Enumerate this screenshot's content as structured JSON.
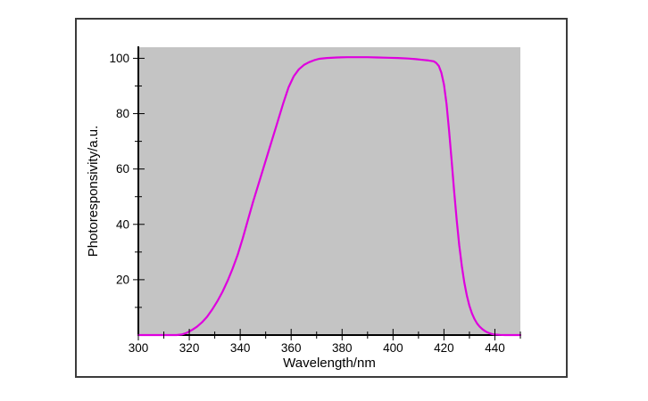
{
  "figure": {
    "page_bg": "#ffffff",
    "panel_bg": "#ffffff",
    "panel_border_color": "#3b3b3b",
    "plot_bg": "#c4c4c4",
    "axis_color": "#000000",
    "text_color": "#000000"
  },
  "chart_data": {
    "type": "line",
    "title": "",
    "xlabel": "Wavelength/nm",
    "ylabel": "Photoresponsivity/a.u.",
    "xlim": [
      300,
      450
    ],
    "ylim": [
      0,
      104
    ],
    "grid": false,
    "legend": "none",
    "x_major_ticks": [
      300,
      320,
      340,
      360,
      380,
      400,
      420,
      440
    ],
    "x_minor_ticks": [
      310,
      330,
      350,
      370,
      390,
      410,
      430,
      450
    ],
    "y_major_ticks": [
      20,
      40,
      60,
      80,
      100
    ],
    "y_minor_ticks": [
      10,
      30,
      50,
      70,
      90
    ],
    "tick_style": "in-and-out",
    "series": [
      {
        "name": "photoresponsivity",
        "color": "#de00de",
        "line_width": 2.2,
        "points": [
          [
            300,
            0
          ],
          [
            304,
            0
          ],
          [
            308,
            0
          ],
          [
            312,
            0
          ],
          [
            315,
            0
          ],
          [
            317,
            0.2
          ],
          [
            319,
            0.8
          ],
          [
            321,
            1.8
          ],
          [
            323,
            3
          ],
          [
            325,
            4.6
          ],
          [
            327,
            6.6
          ],
          [
            329,
            9.2
          ],
          [
            331,
            12.2
          ],
          [
            333,
            15.6
          ],
          [
            335,
            19.5
          ],
          [
            337,
            24
          ],
          [
            339,
            29
          ],
          [
            341,
            35
          ],
          [
            343,
            41.5
          ],
          [
            345,
            48
          ],
          [
            347,
            54
          ],
          [
            349,
            60
          ],
          [
            351,
            66
          ],
          [
            353,
            72
          ],
          [
            355,
            78
          ],
          [
            357,
            84
          ],
          [
            359,
            89.5
          ],
          [
            361,
            93.5
          ],
          [
            363,
            96
          ],
          [
            365,
            97.6
          ],
          [
            367,
            98.6
          ],
          [
            369,
            99.3
          ],
          [
            371,
            99.8
          ],
          [
            374,
            100.1
          ],
          [
            378,
            100.3
          ],
          [
            382,
            100.4
          ],
          [
            386,
            100.4
          ],
          [
            390,
            100.4
          ],
          [
            394,
            100.3
          ],
          [
            398,
            100.2
          ],
          [
            402,
            100.1
          ],
          [
            406,
            99.9
          ],
          [
            409,
            99.7
          ],
          [
            412,
            99.4
          ],
          [
            414,
            99.2
          ],
          [
            416,
            98.9
          ],
          [
            417,
            98.3
          ],
          [
            418,
            97.2
          ],
          [
            419,
            94.8
          ],
          [
            420,
            90.5
          ],
          [
            421,
            83.5
          ],
          [
            422,
            74
          ],
          [
            423,
            63
          ],
          [
            424,
            52
          ],
          [
            425,
            41.5
          ],
          [
            426,
            32.5
          ],
          [
            427,
            25
          ],
          [
            428,
            19
          ],
          [
            429,
            14.2
          ],
          [
            430,
            10.6
          ],
          [
            431,
            7.8
          ],
          [
            432,
            5.8
          ],
          [
            433,
            4.2
          ],
          [
            434,
            3.1
          ],
          [
            435,
            2.2
          ],
          [
            436,
            1.5
          ],
          [
            437,
            1
          ],
          [
            438,
            0.6
          ],
          [
            439,
            0.35
          ],
          [
            440,
            0.2
          ],
          [
            442,
            0.05
          ],
          [
            444,
            0
          ],
          [
            447,
            0
          ],
          [
            450,
            0
          ]
        ]
      }
    ]
  }
}
